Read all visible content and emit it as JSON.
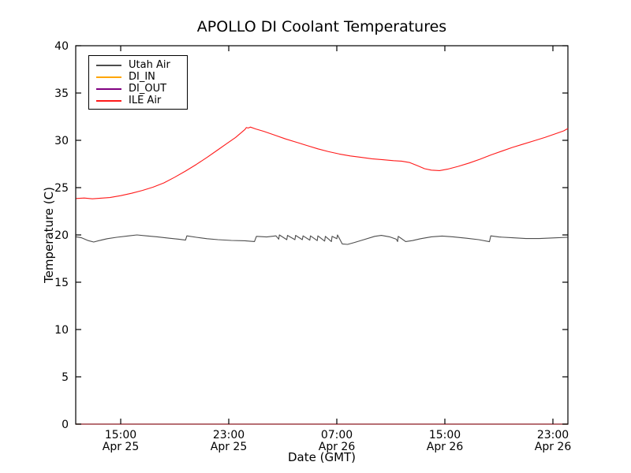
{
  "chart_data": {
    "type": "line",
    "title": "APOLLO DI Coolant Temperatures",
    "xlabel": "Date (GMT)",
    "ylabel": "Temperature (C)",
    "ylim": [
      0,
      40
    ],
    "xlim": [
      11.67,
      48.11
    ],
    "grid": false,
    "legend_position": "upper left",
    "y_ticks": [
      0,
      5,
      10,
      15,
      20,
      25,
      30,
      35,
      40
    ],
    "x_ticks": [
      {
        "t": 15,
        "time": "15:00",
        "date": "Apr 25"
      },
      {
        "t": 23,
        "time": "23:00",
        "date": "Apr 25"
      },
      {
        "t": 31,
        "time": "07:00",
        "date": "Apr 26"
      },
      {
        "t": 39,
        "time": "15:00",
        "date": "Apr 26"
      },
      {
        "t": 47,
        "time": "23:00",
        "date": "Apr 26"
      }
    ],
    "series": [
      {
        "name": "Utah Air",
        "color": "#4d4d4d",
        "width": 1.1,
        "opacity": 1,
        "points": [
          [
            11.7,
            19.8
          ],
          [
            12.1,
            19.7
          ],
          [
            12.6,
            19.4
          ],
          [
            13.0,
            19.25
          ],
          [
            13.4,
            19.4
          ],
          [
            14.0,
            19.6
          ],
          [
            14.7,
            19.75
          ],
          [
            15.6,
            19.9
          ],
          [
            16.2,
            20.0
          ],
          [
            16.9,
            19.9
          ],
          [
            17.7,
            19.8
          ],
          [
            18.6,
            19.65
          ],
          [
            19.3,
            19.55
          ],
          [
            19.8,
            19.45
          ],
          [
            19.9,
            19.9
          ],
          [
            20.6,
            19.75
          ],
          [
            21.4,
            19.6
          ],
          [
            22.2,
            19.5
          ],
          [
            23.2,
            19.42
          ],
          [
            24.2,
            19.38
          ],
          [
            24.9,
            19.3
          ],
          [
            25.05,
            19.85
          ],
          [
            25.8,
            19.78
          ],
          [
            26.5,
            19.9
          ],
          [
            26.7,
            19.55
          ],
          [
            26.75,
            20.0
          ],
          [
            27.3,
            19.5
          ],
          [
            27.35,
            19.95
          ],
          [
            27.9,
            19.5
          ],
          [
            27.95,
            19.95
          ],
          [
            28.45,
            19.5
          ],
          [
            28.5,
            19.9
          ],
          [
            29.0,
            19.45
          ],
          [
            29.05,
            19.9
          ],
          [
            29.55,
            19.4
          ],
          [
            29.6,
            19.9
          ],
          [
            30.1,
            19.35
          ],
          [
            30.15,
            19.85
          ],
          [
            30.6,
            19.3
          ],
          [
            30.65,
            19.85
          ],
          [
            31.0,
            19.6
          ],
          [
            31.05,
            20.0
          ],
          [
            31.4,
            19.05
          ],
          [
            31.8,
            19.0
          ],
          [
            32.3,
            19.2
          ],
          [
            33.0,
            19.5
          ],
          [
            33.8,
            19.85
          ],
          [
            34.3,
            19.95
          ],
          [
            34.9,
            19.8
          ],
          [
            35.4,
            19.55
          ],
          [
            35.5,
            19.3
          ],
          [
            35.55,
            19.85
          ],
          [
            36.1,
            19.3
          ],
          [
            36.6,
            19.4
          ],
          [
            37.2,
            19.6
          ],
          [
            38.0,
            19.8
          ],
          [
            38.8,
            19.88
          ],
          [
            39.6,
            19.8
          ],
          [
            40.6,
            19.65
          ],
          [
            41.5,
            19.5
          ],
          [
            42.3,
            19.28
          ],
          [
            42.4,
            19.9
          ],
          [
            43.0,
            19.78
          ],
          [
            44.0,
            19.7
          ],
          [
            45.0,
            19.62
          ],
          [
            46.0,
            19.62
          ],
          [
            47.0,
            19.68
          ],
          [
            48.1,
            19.75
          ]
        ]
      },
      {
        "name": "DI_IN",
        "color": "#ffa500",
        "width": 1.3,
        "opacity": 0.85,
        "points": [
          [
            11.67,
            0
          ],
          [
            48.11,
            0
          ]
        ]
      },
      {
        "name": "DI_OUT",
        "color": "#800080",
        "width": 1.3,
        "opacity": 0.6,
        "points": [
          [
            11.67,
            0
          ],
          [
            48.11,
            0
          ]
        ]
      },
      {
        "name": "ILE Air",
        "color": "#ff1a1a",
        "width": 1.1,
        "opacity": 1,
        "points": [
          [
            11.7,
            23.85
          ],
          [
            12.3,
            23.9
          ],
          [
            12.9,
            23.82
          ],
          [
            13.5,
            23.88
          ],
          [
            14.2,
            23.95
          ],
          [
            15.0,
            24.15
          ],
          [
            15.8,
            24.4
          ],
          [
            16.6,
            24.7
          ],
          [
            17.4,
            25.05
          ],
          [
            18.2,
            25.5
          ],
          [
            19.0,
            26.1
          ],
          [
            19.8,
            26.75
          ],
          [
            20.6,
            27.45
          ],
          [
            21.4,
            28.2
          ],
          [
            22.2,
            29.0
          ],
          [
            22.9,
            29.7
          ],
          [
            23.5,
            30.3
          ],
          [
            24.0,
            30.9
          ],
          [
            24.2,
            31.15
          ],
          [
            24.3,
            31.35
          ],
          [
            24.45,
            31.3
          ],
          [
            24.6,
            31.4
          ],
          [
            25.0,
            31.2
          ],
          [
            25.6,
            30.95
          ],
          [
            26.4,
            30.55
          ],
          [
            27.2,
            30.15
          ],
          [
            28.0,
            29.8
          ],
          [
            28.8,
            29.45
          ],
          [
            29.6,
            29.1
          ],
          [
            30.4,
            28.8
          ],
          [
            31.2,
            28.55
          ],
          [
            32.0,
            28.35
          ],
          [
            32.8,
            28.2
          ],
          [
            33.6,
            28.05
          ],
          [
            34.4,
            27.95
          ],
          [
            35.2,
            27.85
          ],
          [
            35.8,
            27.8
          ],
          [
            36.4,
            27.65
          ],
          [
            37.0,
            27.3
          ],
          [
            37.5,
            27.0
          ],
          [
            38.0,
            26.85
          ],
          [
            38.6,
            26.8
          ],
          [
            39.2,
            26.95
          ],
          [
            40.0,
            27.25
          ],
          [
            40.8,
            27.6
          ],
          [
            41.6,
            28.0
          ],
          [
            42.4,
            28.45
          ],
          [
            43.2,
            28.85
          ],
          [
            44.0,
            29.25
          ],
          [
            44.8,
            29.6
          ],
          [
            45.6,
            29.95
          ],
          [
            46.4,
            30.3
          ],
          [
            47.2,
            30.7
          ],
          [
            47.8,
            31.0
          ],
          [
            48.11,
            31.25
          ]
        ]
      }
    ]
  }
}
